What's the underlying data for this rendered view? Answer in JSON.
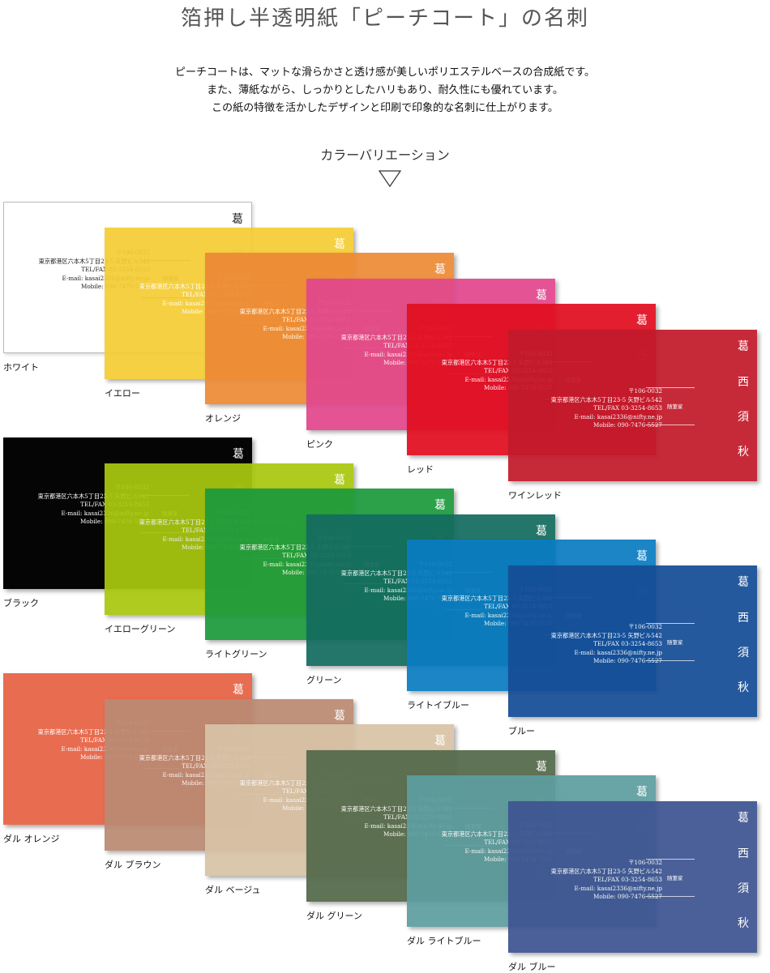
{
  "page": {
    "title": "箔押し半透明紙「ピーチコート」の名刺",
    "intro": [
      "ピーチコートは、マットな滑らかさと透け感が美しいポリエステルベースの合成紙です。",
      "また、薄紙ながら、しっかりとしたハリもあり、耐久性にも優れています。",
      "この紙の特徴を活かしたデザインと印刷で印象的な名刺に仕上がります。"
    ],
    "variation_heading": "カラーバリエーション",
    "down_icon": "triangle-down-outline-icon"
  },
  "card": {
    "name_chars": [
      "葛",
      "西",
      "須",
      "秋"
    ],
    "postal": "〒106-0032",
    "address": "東京都港区六本木5丁目23-5 矢野ビル542",
    "tel": "TEL/FAX 03-3254-8653",
    "email": "E-mail: kasai2336@nifty.ne.jp",
    "mobile": "Mobile: 090-7476-5527",
    "role": "随筆家"
  },
  "groups": [
    {
      "cards": [
        {
          "label": "ホワイト",
          "color": "#ffffff",
          "text_color": "#222222"
        },
        {
          "label": "イエロー",
          "color": "#f5cd35",
          "text_color": "#ffffff"
        },
        {
          "label": "オレンジ",
          "color": "#ed8a36",
          "text_color": "#ffffff"
        },
        {
          "label": "ピンク",
          "color": "#e2488d",
          "text_color": "#ffffff"
        },
        {
          "label": "レッド",
          "color": "#e10f20",
          "text_color": "#ffffff"
        },
        {
          "label": "ワインレッド",
          "color": "#c21a2b",
          "text_color": "#ffffff"
        }
      ]
    },
    {
      "cards": [
        {
          "label": "ブラック",
          "color": "#050505",
          "text_color": "#ffffff"
        },
        {
          "label": "イエローグリーン",
          "color": "#a9c80f",
          "text_color": "#ffffff"
        },
        {
          "label": "ライトグリーン",
          "color": "#1d9a3c",
          "text_color": "#ffffff"
        },
        {
          "label": "グリーン",
          "color": "#146c5f",
          "text_color": "#ffffff"
        },
        {
          "label": "ライトイブルー",
          "color": "#0a7cc2",
          "text_color": "#ffffff"
        },
        {
          "label": "ブルー",
          "color": "#154d96",
          "text_color": "#ffffff"
        }
      ]
    },
    {
      "cards": [
        {
          "label": "ダル オレンジ",
          "color": "#e86c50",
          "text_color": "#ffffff"
        },
        {
          "label": "ダル ブラウン",
          "color": "#bb8a72",
          "text_color": "#ffffff"
        },
        {
          "label": "ダル ベージュ",
          "color": "#d8c3a6",
          "text_color": "#ffffff"
        },
        {
          "label": "ダル グリーン",
          "color": "#53694a",
          "text_color": "#ffffff"
        },
        {
          "label": "ダル ライトブルー",
          "color": "#5e9ea0",
          "text_color": "#ffffff"
        },
        {
          "label": "ダル ブルー",
          "color": "#3e5592",
          "text_color": "#ffffff"
        }
      ]
    }
  ]
}
